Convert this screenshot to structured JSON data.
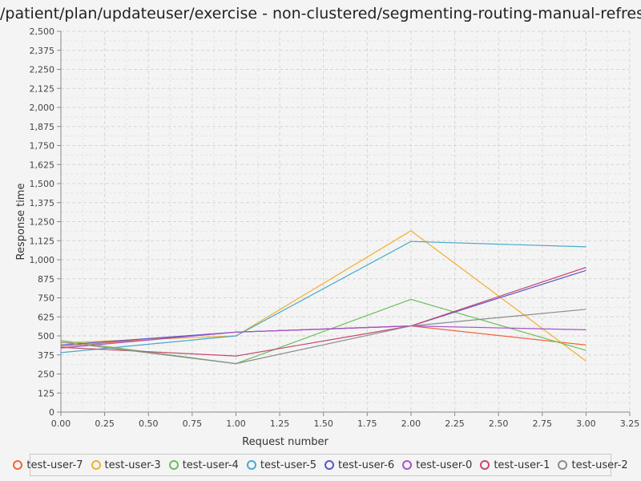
{
  "chart_data": {
    "type": "line",
    "title": "/patient/plan/updateuser/exercise - non-clustered/segmenting-routing-manual-refresh",
    "xlabel": "Request number",
    "ylabel": "Response time",
    "xlim": [
      0,
      3.25
    ],
    "ylim": [
      0,
      2500
    ],
    "x_ticks": [
      "0.00",
      "0.25",
      "0.50",
      "0.75",
      "1.00",
      "1.25",
      "1.50",
      "1.75",
      "2.00",
      "2.25",
      "2.50",
      "2.75",
      "3.00",
      "3.25"
    ],
    "y_ticks": [
      "0",
      "125",
      "250",
      "375",
      "500",
      "625",
      "750",
      "875",
      "1,000",
      "1,125",
      "1,250",
      "1,375",
      "1,500",
      "1,625",
      "1,750",
      "1,875",
      "2,000",
      "2,125",
      "2,250",
      "2,375",
      "2,500"
    ],
    "grid": true,
    "legend_position": "bottom",
    "x": [
      0,
      1,
      2,
      3
    ],
    "series": [
      {
        "name": "test-user-7",
        "color": "#f0663a",
        "values": [
          430,
          525,
          565,
          440
        ]
      },
      {
        "name": "test-user-3",
        "color": "#f0b030",
        "values": [
          455,
          500,
          1190,
          335
        ]
      },
      {
        "name": "test-user-4",
        "color": "#6cbe5c",
        "values": [
          470,
          318,
          740,
          405
        ]
      },
      {
        "name": "test-user-5",
        "color": "#49aac8",
        "values": [
          390,
          500,
          1120,
          1085
        ]
      },
      {
        "name": "test-user-6",
        "color": "#5a55c8",
        "values": [
          440,
          525,
          565,
          930
        ]
      },
      {
        "name": "test-user-0",
        "color": "#a655c8",
        "values": [
          420,
          525,
          565,
          540
        ]
      },
      {
        "name": "test-user-1",
        "color": "#c84870",
        "values": [
          425,
          368,
          565,
          950
        ]
      },
      {
        "name": "test-user-2",
        "color": "#8c8c8c",
        "values": [
          460,
          318,
          565,
          675
        ]
      }
    ]
  }
}
